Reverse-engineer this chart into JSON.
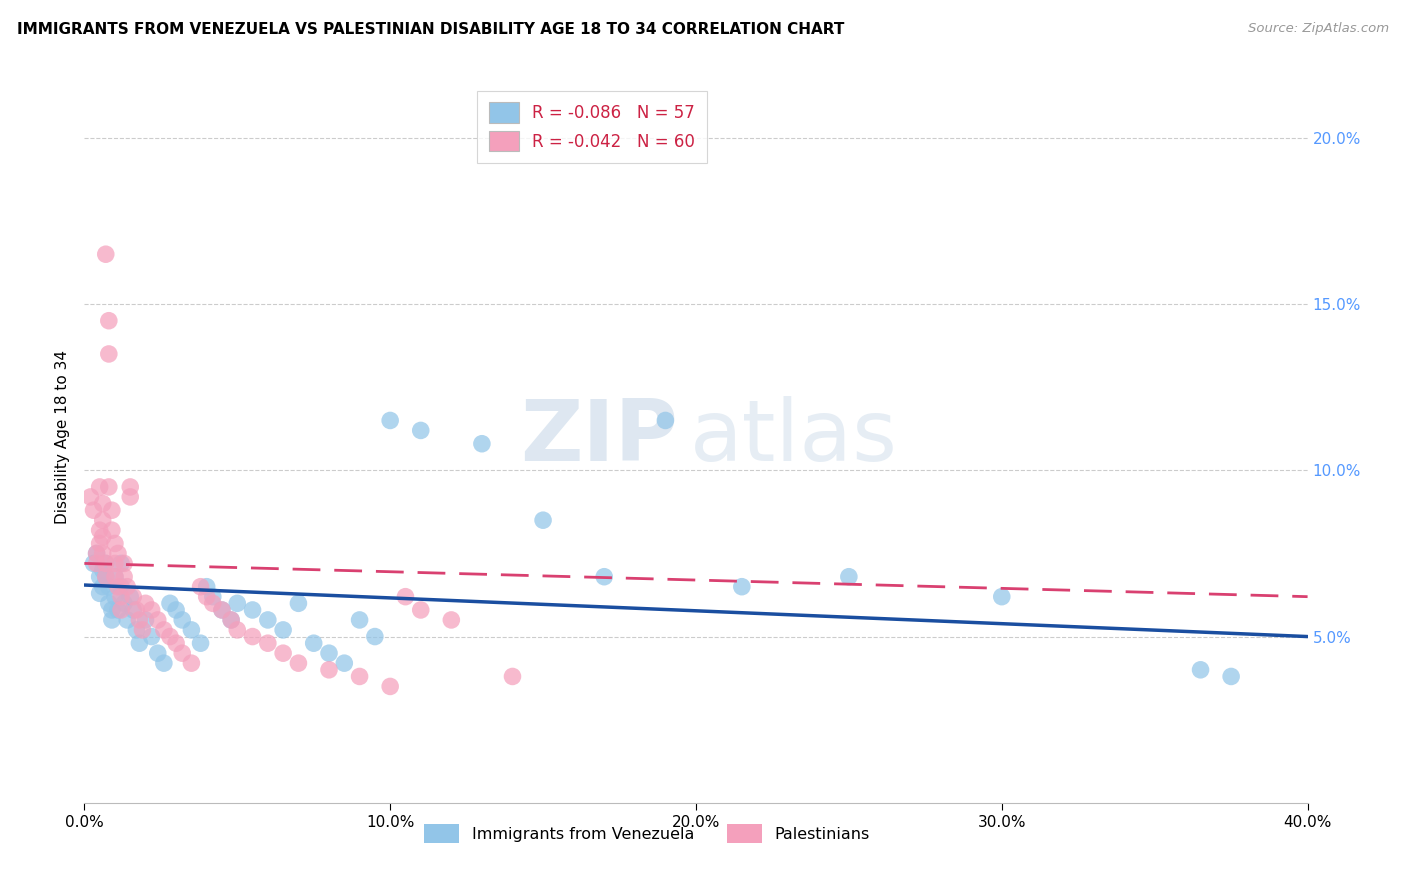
{
  "title": "IMMIGRANTS FROM VENEZUELA VS PALESTINIAN DISABILITY AGE 18 TO 34 CORRELATION CHART",
  "source": "Source: ZipAtlas.com",
  "ylabel": "Disability Age 18 to 34",
  "xlim": [
    0.0,
    0.4
  ],
  "ylim": [
    0.0,
    0.22
  ],
  "xticks": [
    0.0,
    0.1,
    0.2,
    0.3,
    0.4
  ],
  "yticks": [
    0.05,
    0.1,
    0.15,
    0.2
  ],
  "legend_blue_r": "R = -0.086",
  "legend_blue_n": "N = 57",
  "legend_pink_r": "R = -0.042",
  "legend_pink_n": "N = 60",
  "legend_label_blue": "Immigrants from Venezuela",
  "legend_label_pink": "Palestinians",
  "blue_color": "#92C5E8",
  "pink_color": "#F4A0BC",
  "blue_line_color": "#1A4EA0",
  "pink_line_color": "#D94070",
  "watermark_zip": "ZIP",
  "watermark_atlas": "atlas",
  "blue_trend_x": [
    0.0,
    0.4
  ],
  "blue_trend_y": [
    0.0655,
    0.05
  ],
  "pink_trend_x": [
    0.0,
    0.4
  ],
  "pink_trend_y": [
    0.072,
    0.062
  ],
  "blue_scatter": [
    [
      0.003,
      0.072
    ],
    [
      0.004,
      0.075
    ],
    [
      0.005,
      0.068
    ],
    [
      0.005,
      0.063
    ],
    [
      0.006,
      0.07
    ],
    [
      0.006,
      0.065
    ],
    [
      0.007,
      0.072
    ],
    [
      0.007,
      0.068
    ],
    [
      0.008,
      0.065
    ],
    [
      0.008,
      0.06
    ],
    [
      0.009,
      0.058
    ],
    [
      0.009,
      0.055
    ],
    [
      0.01,
      0.068
    ],
    [
      0.01,
      0.062
    ],
    [
      0.011,
      0.058
    ],
    [
      0.012,
      0.072
    ],
    [
      0.012,
      0.065
    ],
    [
      0.013,
      0.06
    ],
    [
      0.014,
      0.055
    ],
    [
      0.015,
      0.062
    ],
    [
      0.016,
      0.058
    ],
    [
      0.017,
      0.052
    ],
    [
      0.018,
      0.048
    ],
    [
      0.02,
      0.055
    ],
    [
      0.022,
      0.05
    ],
    [
      0.024,
      0.045
    ],
    [
      0.026,
      0.042
    ],
    [
      0.028,
      0.06
    ],
    [
      0.03,
      0.058
    ],
    [
      0.032,
      0.055
    ],
    [
      0.035,
      0.052
    ],
    [
      0.038,
      0.048
    ],
    [
      0.04,
      0.065
    ],
    [
      0.042,
      0.062
    ],
    [
      0.045,
      0.058
    ],
    [
      0.048,
      0.055
    ],
    [
      0.05,
      0.06
    ],
    [
      0.055,
      0.058
    ],
    [
      0.06,
      0.055
    ],
    [
      0.065,
      0.052
    ],
    [
      0.07,
      0.06
    ],
    [
      0.075,
      0.048
    ],
    [
      0.08,
      0.045
    ],
    [
      0.085,
      0.042
    ],
    [
      0.09,
      0.055
    ],
    [
      0.095,
      0.05
    ],
    [
      0.1,
      0.115
    ],
    [
      0.11,
      0.112
    ],
    [
      0.13,
      0.108
    ],
    [
      0.15,
      0.085
    ],
    [
      0.17,
      0.068
    ],
    [
      0.19,
      0.115
    ],
    [
      0.215,
      0.065
    ],
    [
      0.25,
      0.068
    ],
    [
      0.3,
      0.062
    ],
    [
      0.365,
      0.04
    ],
    [
      0.375,
      0.038
    ]
  ],
  "pink_scatter": [
    [
      0.002,
      0.092
    ],
    [
      0.003,
      0.088
    ],
    [
      0.004,
      0.075
    ],
    [
      0.004,
      0.072
    ],
    [
      0.005,
      0.095
    ],
    [
      0.005,
      0.082
    ],
    [
      0.005,
      0.078
    ],
    [
      0.006,
      0.09
    ],
    [
      0.006,
      0.085
    ],
    [
      0.006,
      0.08
    ],
    [
      0.006,
      0.075
    ],
    [
      0.007,
      0.072
    ],
    [
      0.007,
      0.068
    ],
    [
      0.007,
      0.165
    ],
    [
      0.008,
      0.145
    ],
    [
      0.008,
      0.135
    ],
    [
      0.008,
      0.095
    ],
    [
      0.009,
      0.088
    ],
    [
      0.009,
      0.082
    ],
    [
      0.01,
      0.078
    ],
    [
      0.01,
      0.072
    ],
    [
      0.01,
      0.068
    ],
    [
      0.011,
      0.075
    ],
    [
      0.011,
      0.065
    ],
    [
      0.012,
      0.062
    ],
    [
      0.012,
      0.058
    ],
    [
      0.013,
      0.072
    ],
    [
      0.013,
      0.068
    ],
    [
      0.014,
      0.065
    ],
    [
      0.015,
      0.095
    ],
    [
      0.015,
      0.092
    ],
    [
      0.016,
      0.062
    ],
    [
      0.017,
      0.058
    ],
    [
      0.018,
      0.055
    ],
    [
      0.019,
      0.052
    ],
    [
      0.02,
      0.06
    ],
    [
      0.022,
      0.058
    ],
    [
      0.024,
      0.055
    ],
    [
      0.026,
      0.052
    ],
    [
      0.028,
      0.05
    ],
    [
      0.03,
      0.048
    ],
    [
      0.032,
      0.045
    ],
    [
      0.035,
      0.042
    ],
    [
      0.038,
      0.065
    ],
    [
      0.04,
      0.062
    ],
    [
      0.042,
      0.06
    ],
    [
      0.045,
      0.058
    ],
    [
      0.048,
      0.055
    ],
    [
      0.05,
      0.052
    ],
    [
      0.055,
      0.05
    ],
    [
      0.06,
      0.048
    ],
    [
      0.065,
      0.045
    ],
    [
      0.07,
      0.042
    ],
    [
      0.08,
      0.04
    ],
    [
      0.09,
      0.038
    ],
    [
      0.1,
      0.035
    ],
    [
      0.105,
      0.062
    ],
    [
      0.11,
      0.058
    ],
    [
      0.12,
      0.055
    ],
    [
      0.14,
      0.038
    ]
  ]
}
